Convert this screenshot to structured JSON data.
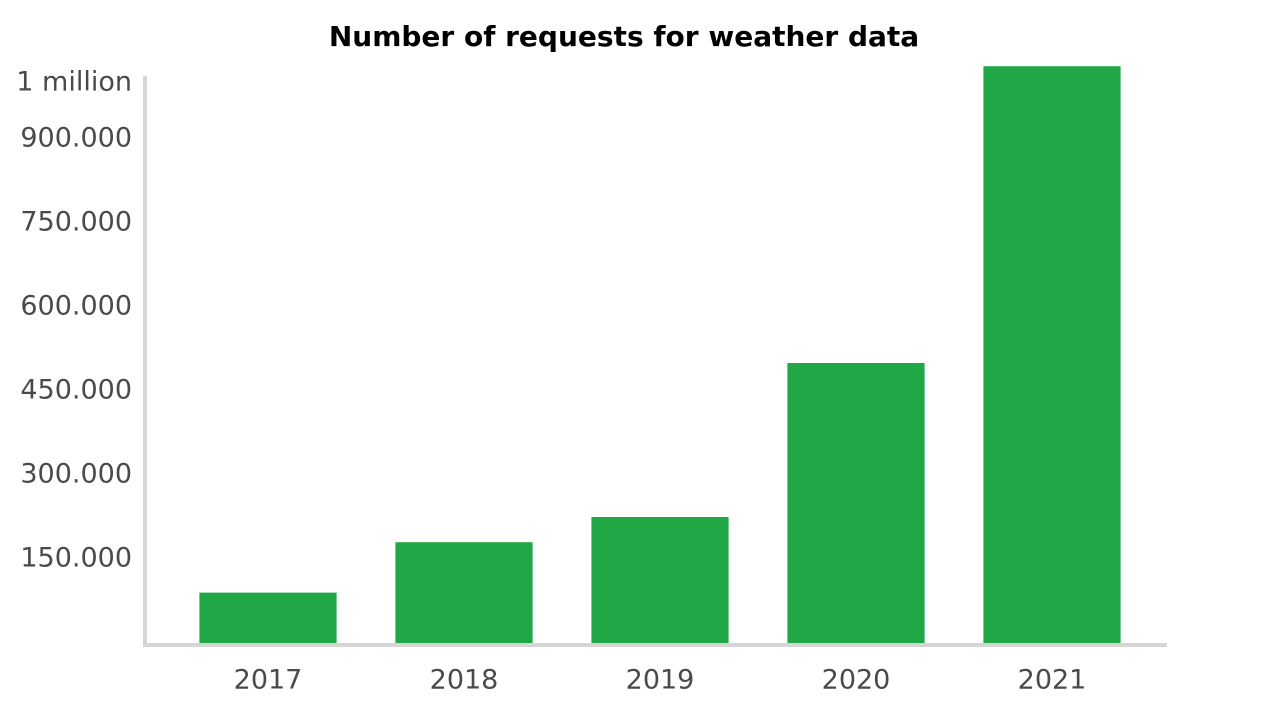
{
  "chart_data": {
    "type": "bar",
    "title": "Number of requests for weather data",
    "categories": [
      "2017",
      "2018",
      "2019",
      "2020",
      "2021"
    ],
    "values": [
      90000,
      180000,
      225000,
      500000,
      1030000
    ],
    "color": "#21a846",
    "ylim": [
      0,
      1050000
    ],
    "yticks": [
      {
        "value": 150000,
        "label": "150.000"
      },
      {
        "value": 300000,
        "label": "300.000"
      },
      {
        "value": 450000,
        "label": "450.000"
      },
      {
        "value": 600000,
        "label": "600.000"
      },
      {
        "value": 750000,
        "label": "750.000"
      },
      {
        "value": 900000,
        "label": "900.000"
      },
      {
        "value": 1000000,
        "label": "1 million"
      }
    ],
    "grid": false
  }
}
